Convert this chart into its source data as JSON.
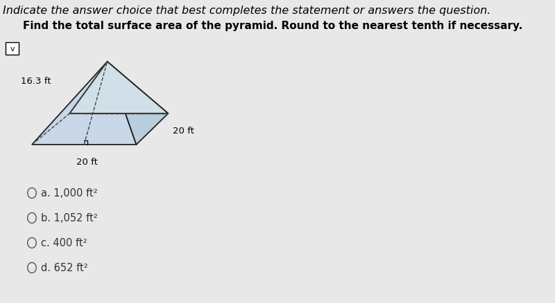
{
  "title_line1": "Indicate the answer choice that best completes the statement or answers the question.",
  "title_line2": "Find the total surface area of the pyramid. Round to the nearest tenth if necessary.",
  "bg_color": "#e8e8e8",
  "pyramid_label_slant": "16.3 ft",
  "pyramid_label_right": "20 ft",
  "pyramid_label_bottom": "20 ft",
  "choices": [
    "a. 1,000 ft²",
    "b. 1,052 ft²",
    "c. 400 ft²",
    "d. 652 ft²"
  ],
  "choice_font_size": 10.5,
  "title1_font_size": 11.5,
  "title2_font_size": 11,
  "pyramid_face_color": "#c8d8e8",
  "pyramid_edge_color": "#222222"
}
